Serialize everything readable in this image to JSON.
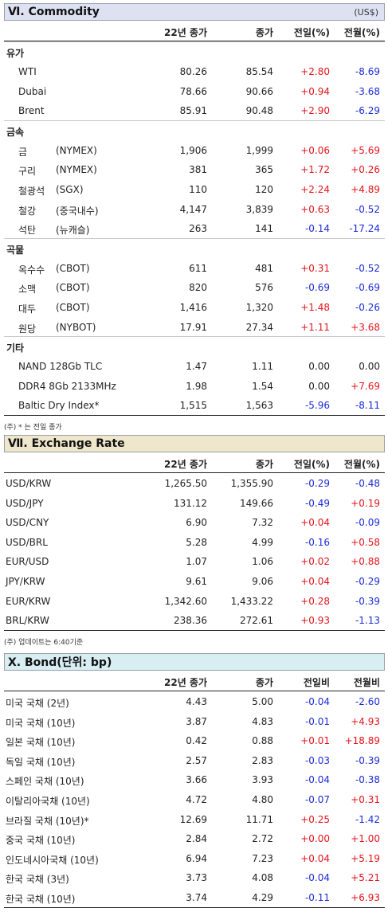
{
  "commodity": {
    "title": "Ⅵ. Commodity",
    "unit": "(US$)",
    "headers": [
      "22년 종가",
      "종가",
      "전일(%)",
      "전월(%)"
    ],
    "groups": [
      {
        "name": "유가",
        "items": [
          {
            "name": "WTI",
            "sub": "",
            "v1": "80.26",
            "v2": "85.54",
            "d1": "+2.80",
            "d2": "-8.69"
          },
          {
            "name": "Dubai",
            "sub": "",
            "v1": "78.66",
            "v2": "90.66",
            "d1": "+0.94",
            "d2": "-3.68"
          },
          {
            "name": "Brent",
            "sub": "",
            "v1": "85.91",
            "v2": "90.48",
            "d1": "+2.90",
            "d2": "-6.29"
          }
        ]
      },
      {
        "name": "금속",
        "items": [
          {
            "name": "금",
            "sub": "(NYMEX)",
            "v1": "1,906",
            "v2": "1,999",
            "d1": "+0.06",
            "d2": "+5.69"
          },
          {
            "name": "구리",
            "sub": "(NYMEX)",
            "v1": "381",
            "v2": "365",
            "d1": "+1.72",
            "d2": "+0.26"
          },
          {
            "name": "철광석",
            "sub": "(SGX)",
            "v1": "110",
            "v2": "120",
            "d1": "+2.24",
            "d2": "+4.89"
          },
          {
            "name": "철강",
            "sub": "(중국내수)",
            "v1": "4,147",
            "v2": "3,839",
            "d1": "+0.63",
            "d2": "-0.52"
          },
          {
            "name": "석탄",
            "sub": "(뉴캐슬)",
            "v1": "263",
            "v2": "141",
            "d1": "-0.14",
            "d2": "-17.24"
          }
        ]
      },
      {
        "name": "곡물",
        "items": [
          {
            "name": "옥수수",
            "sub": "(CBOT)",
            "v1": "611",
            "v2": "481",
            "d1": "+0.31",
            "d2": "-0.52"
          },
          {
            "name": "소맥",
            "sub": "(CBOT)",
            "v1": "820",
            "v2": "576",
            "d1": "-0.69",
            "d2": "-0.69"
          },
          {
            "name": "대두",
            "sub": "(CBOT)",
            "v1": "1,416",
            "v2": "1,320",
            "d1": "+1.48",
            "d2": "-0.26"
          },
          {
            "name": "원당",
            "sub": "(NYBOT)",
            "v1": "17.91",
            "v2": "27.34",
            "d1": "+1.11",
            "d2": "+3.68"
          }
        ]
      },
      {
        "name": "기타",
        "items": [
          {
            "name": "NAND 128Gb TLC",
            "sub": "",
            "v1": "1.47",
            "v2": "1.11",
            "d1": "0.00",
            "d2": "0.00"
          },
          {
            "name": "DDR4 8Gb 2133MHz",
            "sub": "",
            "v1": "1.98",
            "v2": "1.54",
            "d1": "0.00",
            "d2": "+7.69"
          },
          {
            "name": "Baltic Dry Index*",
            "sub": "",
            "v1": "1,515",
            "v2": "1,563",
            "d1": "-5.96",
            "d2": "-8.11"
          }
        ]
      }
    ],
    "note": "(주) * 는 전일 종가"
  },
  "fx": {
    "title": "Ⅶ. Exchange Rate",
    "headers": [
      "22년 종가",
      "종가",
      "전일(%)",
      "전월(%)"
    ],
    "items": [
      {
        "name": "USD/KRW",
        "v1": "1,265.50",
        "v2": "1,355.90",
        "d1": "-0.29",
        "d2": "-0.48"
      },
      {
        "name": "USD/JPY",
        "v1": "131.12",
        "v2": "149.66",
        "d1": "-0.49",
        "d2": "+0.19"
      },
      {
        "name": "USD/CNY",
        "v1": "6.90",
        "v2": "7.32",
        "d1": "+0.04",
        "d2": "-0.09"
      },
      {
        "name": "USD/BRL",
        "v1": "5.28",
        "v2": "4.99",
        "d1": "-0.16",
        "d2": "+0.58"
      },
      {
        "name": "EUR/USD",
        "v1": "1.07",
        "v2": "1.06",
        "d1": "+0.02",
        "d2": "+0.88"
      },
      {
        "name": "JPY/KRW",
        "v1": "9.61",
        "v2": "9.06",
        "d1": "+0.04",
        "d2": "-0.29"
      },
      {
        "name": "EUR/KRW",
        "v1": "1,342.60",
        "v2": "1,433.22",
        "d1": "+0.28",
        "d2": "-0.39"
      },
      {
        "name": "BRL/KRW",
        "v1": "238.36",
        "v2": "272.61",
        "d1": "+0.93",
        "d2": "-1.13"
      }
    ],
    "note": "(주) 업데이트는 6:40기준"
  },
  "bond": {
    "title": "X. Bond(단위: bp)",
    "headers": [
      "22년 종가",
      "종가",
      "전일비",
      "전월비"
    ],
    "items": [
      {
        "name": "미국 국채 (2년)",
        "v1": "4.43",
        "v2": "5.00",
        "d1": "-0.04",
        "d2": "-2.60"
      },
      {
        "name": "미국 국채 (10년)",
        "v1": "3.87",
        "v2": "4.83",
        "d1": "-0.01",
        "d2": "+4.93"
      },
      {
        "name": "일본 국채 (10년)",
        "v1": "0.42",
        "v2": "0.88",
        "d1": "+0.01",
        "d2": "+18.89"
      },
      {
        "name": "독일 국채 (10년)",
        "v1": "2.57",
        "v2": "2.83",
        "d1": "-0.03",
        "d2": "-0.39"
      },
      {
        "name": "스페인 국채 (10년)",
        "v1": "3.66",
        "v2": "3.93",
        "d1": "-0.04",
        "d2": "-0.38"
      },
      {
        "name": "이탈리아국채 (10년)",
        "v1": "4.72",
        "v2": "4.80",
        "d1": "-0.07",
        "d2": "+0.31"
      },
      {
        "name": "브라질 국채 (10년)*",
        "v1": "12.69",
        "v2": "11.71",
        "d1": "+0.25",
        "d2": "-1.42"
      },
      {
        "name": "중국 국채 (10년)",
        "v1": "2.84",
        "v2": "2.72",
        "d1": "+0.00",
        "d2": "+1.00"
      },
      {
        "name": "인도네시아국채 (10년)",
        "v1": "6.94",
        "v2": "7.23",
        "d1": "+0.04",
        "d2": "+5.19"
      },
      {
        "name": "한국 국채 (3년)",
        "v1": "3.73",
        "v2": "4.08",
        "d1": "-0.04",
        "d2": "+5.21"
      },
      {
        "name": "한국 국채 (10년)",
        "v1": "3.74",
        "v2": "4.29",
        "d1": "-0.11",
        "d2": "+6.93"
      }
    ]
  }
}
